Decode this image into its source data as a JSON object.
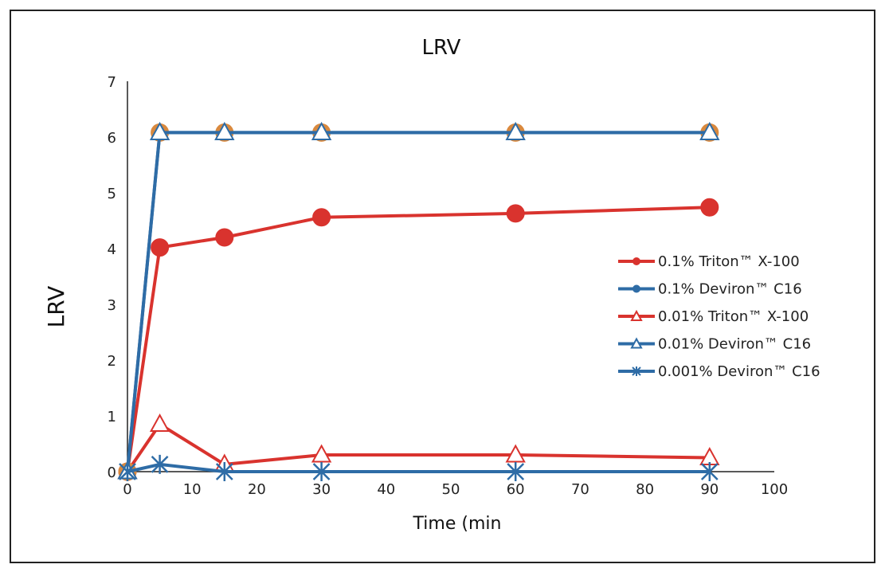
{
  "chart_data": {
    "type": "line",
    "title": "LRV",
    "xlabel": "Time (min",
    "ylabel": "LRV",
    "xlim": [
      0,
      100
    ],
    "ylim": [
      0,
      7
    ],
    "x_ticks": [
      0,
      10,
      20,
      30,
      40,
      50,
      60,
      70,
      80,
      90,
      100
    ],
    "y_ticks": [
      0,
      1,
      2,
      3,
      4,
      5,
      6,
      7
    ],
    "grid": false,
    "legend_position": "right",
    "x": [
      0,
      5,
      15,
      30,
      60,
      90
    ],
    "series": [
      {
        "name": "0.1% Triton™ X-100",
        "values": [
          0,
          4.02,
          4.2,
          4.56,
          4.63,
          4.74
        ],
        "color": "#d9332e",
        "marker": "circle",
        "marker_fill": "#d9332e"
      },
      {
        "name": "0.1% Deviron™ C16",
        "values": [
          0,
          6.08,
          6.08,
          6.08,
          6.08,
          6.08
        ],
        "color": "#2e6ca6",
        "marker": "circle",
        "marker_fill": "#d9893e"
      },
      {
        "name": "0.01% Triton™ X-100",
        "values": [
          0,
          0.85,
          0.13,
          0.3,
          0.3,
          0.25
        ],
        "color": "#d9332e",
        "marker": "triangle-open",
        "marker_fill": "#ffffff"
      },
      {
        "name": "0.01% Deviron™ C16",
        "values": [
          0,
          6.08,
          6.08,
          6.08,
          6.08,
          6.08
        ],
        "color": "#2e6ca6",
        "marker": "triangle-open",
        "marker_fill": "#ffffff"
      },
      {
        "name": "0.001% Deviron™ C16",
        "values": [
          0,
          0.13,
          0,
          0,
          0,
          0
        ],
        "color": "#2e6ca6",
        "marker": "asterisk",
        "marker_fill": "#2e6ca6"
      }
    ]
  }
}
